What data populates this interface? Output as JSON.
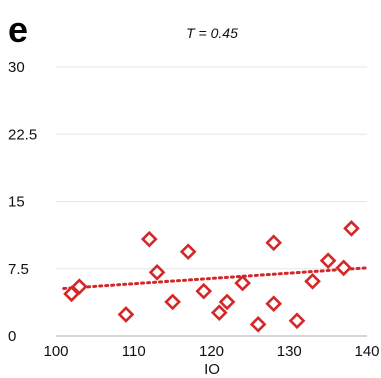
{
  "chart_data": {
    "type": "scatter",
    "panel_label": "e",
    "title": "",
    "subtitle": "T = 0.45",
    "xlabel": "IO",
    "ylabel": "",
    "xlim": [
      100,
      140
    ],
    "ylim": [
      0,
      30
    ],
    "x_ticks": [
      "100",
      "110",
      "120",
      "130",
      "140"
    ],
    "y_ticks": [
      "0",
      "7.5",
      "15",
      "22.5",
      "30"
    ],
    "grid": "horizontal",
    "marker": "open-diamond",
    "trendline": {
      "style": "dotted-linear",
      "x": [
        101,
        140
      ],
      "y": [
        5.3,
        7.6
      ]
    },
    "points": [
      {
        "x": 102,
        "y": 4.7
      },
      {
        "x": 103,
        "y": 5.5
      },
      {
        "x": 109,
        "y": 2.4
      },
      {
        "x": 112,
        "y": 10.8
      },
      {
        "x": 113,
        "y": 7.1
      },
      {
        "x": 115,
        "y": 3.8
      },
      {
        "x": 117,
        "y": 9.4
      },
      {
        "x": 119,
        "y": 5.0
      },
      {
        "x": 121,
        "y": 2.6
      },
      {
        "x": 122,
        "y": 3.8
      },
      {
        "x": 124,
        "y": 5.9
      },
      {
        "x": 126,
        "y": 1.3
      },
      {
        "x": 128,
        "y": 10.4
      },
      {
        "x": 128,
        "y": 3.6
      },
      {
        "x": 131,
        "y": 1.7
      },
      {
        "x": 133,
        "y": 6.1
      },
      {
        "x": 135,
        "y": 8.4
      },
      {
        "x": 137,
        "y": 7.6
      },
      {
        "x": 138,
        "y": 12.0
      }
    ],
    "colors": {
      "marker": "#d62728",
      "trendline": "#d62728",
      "grid": "#e6e6e6",
      "axis": "#bfbfbf"
    }
  }
}
